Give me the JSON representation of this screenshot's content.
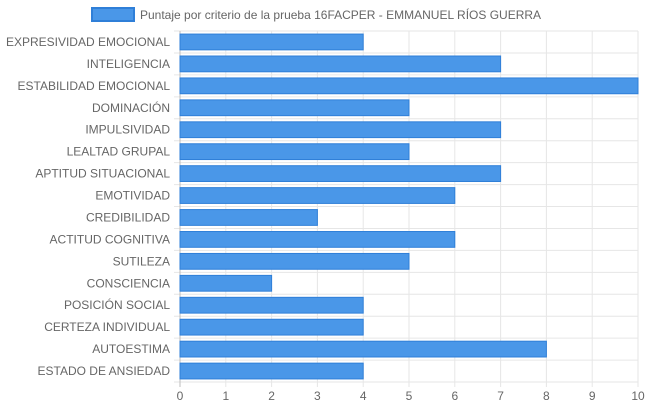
{
  "chart_data": {
    "type": "bar",
    "orientation": "horizontal",
    "categories": [
      "EXPRESIVIDAD EMOCIONAL",
      "INTELIGENCIA",
      "ESTABILIDAD EMOCIONAL",
      "DOMINACIÓN",
      "IMPULSIVIDAD",
      "LEALTAD GRUPAL",
      "APTITUD SITUACIONAL",
      "EMOTIVIDAD",
      "CREDIBILIDAD",
      "ACTITUD COGNITIVA",
      "SUTILEZA",
      "CONSCIENCIA",
      "POSICIÓN SOCIAL",
      "CERTEZA INDIVIDUAL",
      "AUTOESTIMA",
      "ESTADO DE ANSIEDAD"
    ],
    "series": [
      {
        "name": "Puntaje por criterio de la prueba 16FACPER - EMMANUEL RÍOS GUERRA",
        "values": [
          4,
          7,
          10,
          5,
          7,
          5,
          7,
          6,
          3,
          6,
          5,
          2,
          4,
          4,
          8,
          4
        ],
        "color": "#4a97e8",
        "border_color": "#2f7fd8"
      }
    ],
    "x_ticks": [
      "0",
      "1",
      "2",
      "3",
      "4",
      "5",
      "6",
      "7",
      "8",
      "9",
      "10"
    ],
    "xlim": [
      0,
      10
    ],
    "grid": true,
    "legend_position": "top-center"
  }
}
